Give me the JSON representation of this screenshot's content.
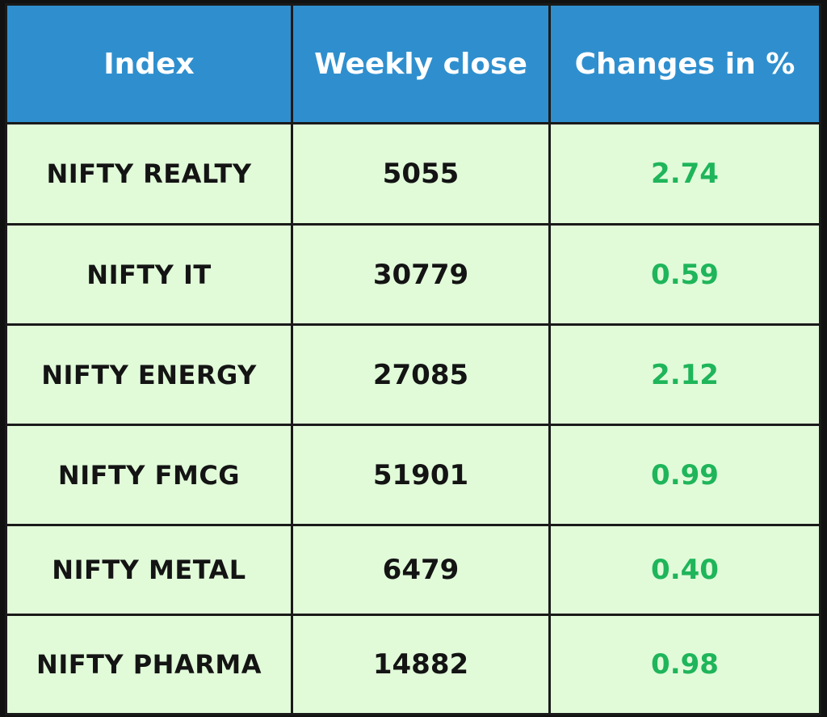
{
  "chart_data": {
    "type": "table",
    "columns": [
      "Index",
      "Weekly close",
      "Changes in %"
    ],
    "rows": [
      {
        "index": "NIFTY REALTY",
        "weekly_close": "5055",
        "change": "2.74"
      },
      {
        "index": "NIFTY IT",
        "weekly_close": "30779",
        "change": "0.59"
      },
      {
        "index": "NIFTY ENERGY",
        "weekly_close": "27085",
        "change": "2.12"
      },
      {
        "index": "NIFTY FMCG",
        "weekly_close": "51901",
        "change": "0.99"
      },
      {
        "index": "NIFTY METAL",
        "weekly_close": "6479",
        "change": "0.40"
      },
      {
        "index": "NIFTY PHARMA",
        "weekly_close": "14882",
        "change": "0.98"
      }
    ]
  },
  "colors": {
    "header_bg": "#2f8fce",
    "row_bg": "#e1fbd9",
    "positive_change": "#1fb55a",
    "border": "#1a1a1a"
  }
}
